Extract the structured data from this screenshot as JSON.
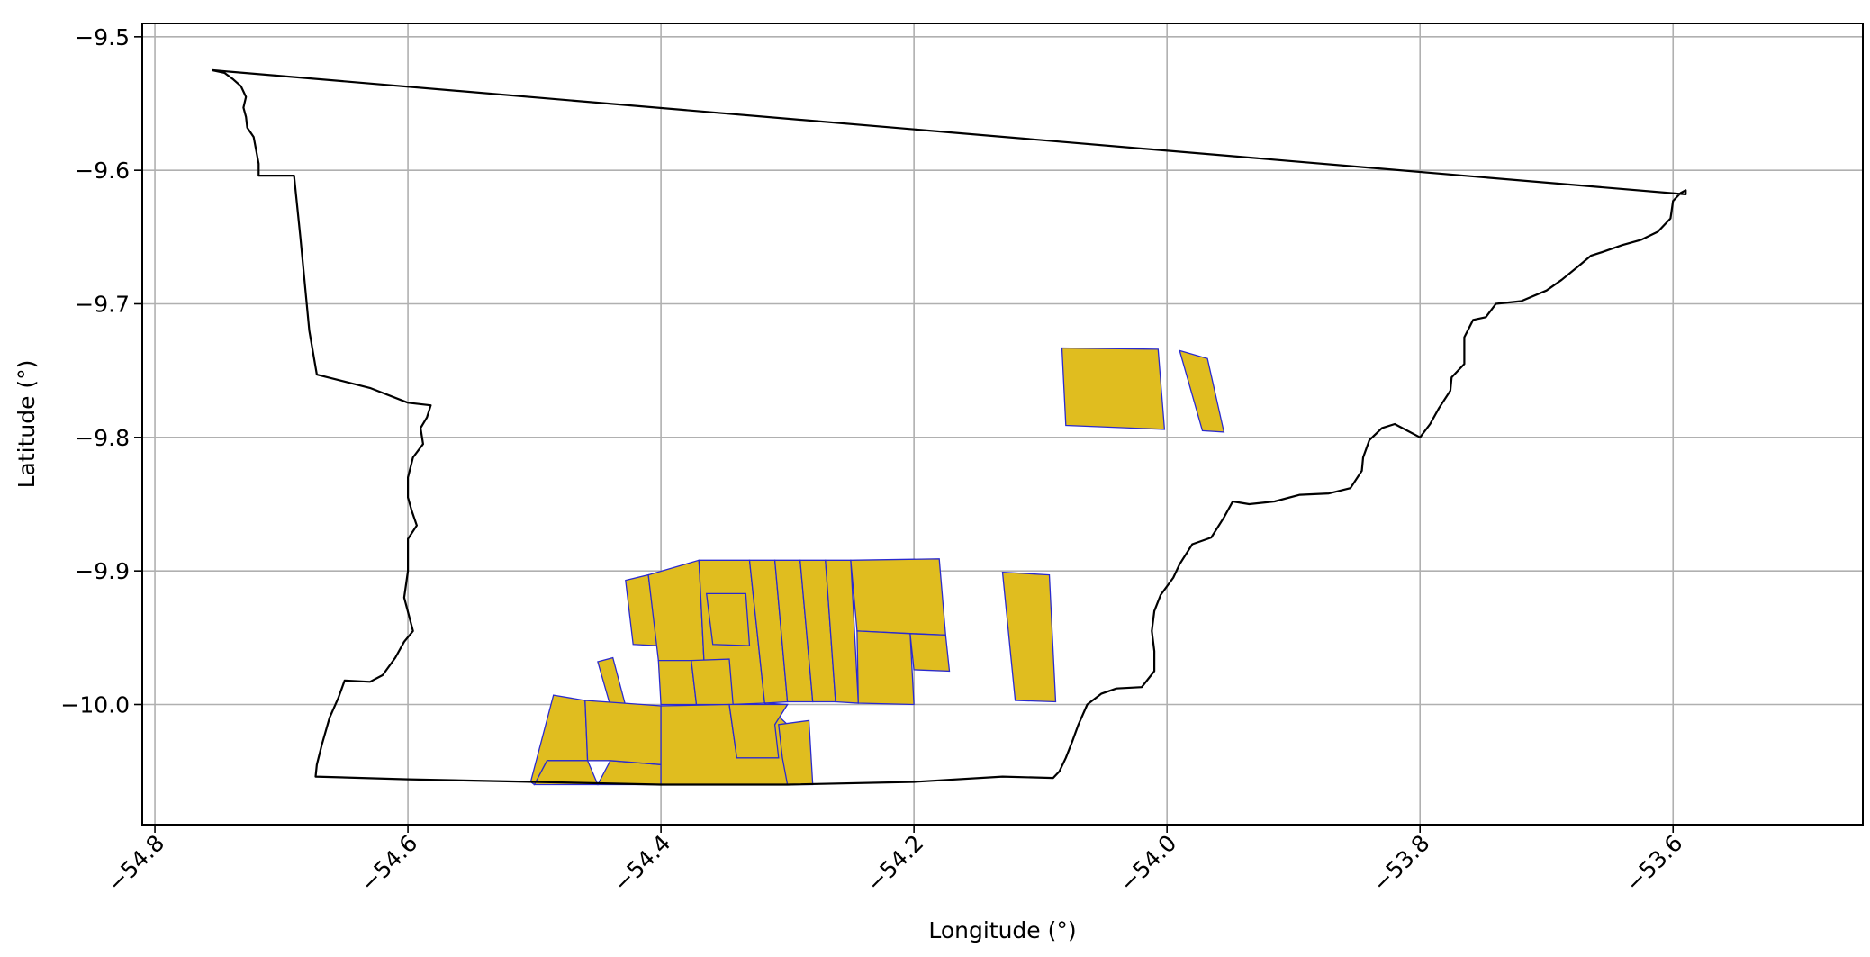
{
  "chart_data": {
    "type": "map",
    "xlabel": "Longitude (°)",
    "ylabel": "Latitude (°)",
    "xlim": [
      -54.81,
      -53.45
    ],
    "ylim": [
      -10.09,
      -9.49
    ],
    "x_ticks": [
      {
        "value": -54.8,
        "label": "−54.8"
      },
      {
        "value": -54.6,
        "label": "−54.6"
      },
      {
        "value": -54.4,
        "label": "−54.4"
      },
      {
        "value": -54.2,
        "label": "−54.2"
      },
      {
        "value": -54.0,
        "label": "−54.0"
      },
      {
        "value": -53.8,
        "label": "−53.8"
      },
      {
        "value": -53.6,
        "label": "−53.6"
      }
    ],
    "y_ticks": [
      {
        "value": -9.5,
        "label": "−9.5"
      },
      {
        "value": -9.6,
        "label": "−9.6"
      },
      {
        "value": -9.7,
        "label": "−9.7"
      },
      {
        "value": -9.8,
        "label": "−9.8"
      },
      {
        "value": -9.9,
        "label": "−9.9"
      },
      {
        "value": -10.0,
        "label": "−10.0"
      }
    ],
    "grid": true,
    "colors": {
      "boundary": "#000000",
      "parcel_fill": "#e0bd1f",
      "parcel_edge": "#2a2ad0",
      "grid": "#b0b0b0"
    },
    "boundary": [
      [
        -54.755,
        -9.525
      ],
      [
        -54.745,
        -9.527
      ],
      [
        -54.738,
        -9.532
      ],
      [
        -54.732,
        -9.537
      ],
      [
        -54.728,
        -9.545
      ],
      [
        -54.73,
        -9.553
      ],
      [
        -54.728,
        -9.56
      ],
      [
        -54.727,
        -9.568
      ],
      [
        -54.722,
        -9.575
      ],
      [
        -54.72,
        -9.585
      ],
      [
        -54.718,
        -9.595
      ],
      [
        -54.718,
        -9.604
      ],
      [
        -54.69,
        -9.604
      ],
      [
        -54.685,
        -9.65
      ],
      [
        -54.678,
        -9.72
      ],
      [
        -54.672,
        -9.753
      ],
      [
        -54.63,
        -9.763
      ],
      [
        -54.6,
        -9.774
      ],
      [
        -54.582,
        -9.776
      ],
      [
        -54.585,
        -9.785
      ],
      [
        -54.59,
        -9.793
      ],
      [
        -54.588,
        -9.805
      ],
      [
        -54.596,
        -9.815
      ],
      [
        -54.6,
        -9.83
      ],
      [
        -54.6,
        -9.845
      ],
      [
        -54.597,
        -9.855
      ],
      [
        -54.593,
        -9.866
      ],
      [
        -54.6,
        -9.876
      ],
      [
        -54.6,
        -9.9
      ],
      [
        -54.603,
        -9.92
      ],
      [
        -54.596,
        -9.945
      ],
      [
        -54.603,
        -9.953
      ],
      [
        -54.61,
        -9.965
      ],
      [
        -54.62,
        -9.978
      ],
      [
        -54.63,
        -9.983
      ],
      [
        -54.65,
        -9.982
      ],
      [
        -54.655,
        -9.995
      ],
      [
        -54.662,
        -10.01
      ],
      [
        -54.668,
        -10.03
      ],
      [
        -54.672,
        -10.045
      ],
      [
        -54.673,
        -10.054
      ],
      [
        -54.6,
        -10.056
      ],
      [
        -54.5,
        -10.058
      ],
      [
        -54.4,
        -10.06
      ],
      [
        -54.3,
        -10.06
      ],
      [
        -54.2,
        -10.058
      ],
      [
        -54.13,
        -10.054
      ],
      [
        -54.09,
        -10.055
      ],
      [
        -54.085,
        -10.05
      ],
      [
        -54.08,
        -10.04
      ],
      [
        -54.075,
        -10.028
      ],
      [
        -54.07,
        -10.015
      ],
      [
        -54.063,
        -10.0
      ],
      [
        -54.052,
        -9.992
      ],
      [
        -54.04,
        -9.988
      ],
      [
        -54.02,
        -9.987
      ],
      [
        -54.01,
        -9.975
      ],
      [
        -54.01,
        -9.96
      ],
      [
        -54.012,
        -9.945
      ],
      [
        -54.01,
        -9.93
      ],
      [
        -54.005,
        -9.918
      ],
      [
        -53.995,
        -9.905
      ],
      [
        -53.99,
        -9.895
      ],
      [
        -53.98,
        -9.88
      ],
      [
        -53.965,
        -9.875
      ],
      [
        -53.955,
        -9.86
      ],
      [
        -53.948,
        -9.848
      ],
      [
        -53.935,
        -9.85
      ],
      [
        -53.915,
        -9.848
      ],
      [
        -53.895,
        -9.843
      ],
      [
        -53.872,
        -9.842
      ],
      [
        -53.855,
        -9.838
      ],
      [
        -53.846,
        -9.825
      ],
      [
        -53.845,
        -9.815
      ],
      [
        -53.84,
        -9.802
      ],
      [
        -53.83,
        -9.793
      ],
      [
        -53.82,
        -9.79
      ],
      [
        -53.81,
        -9.795
      ],
      [
        -53.8,
        -9.8
      ],
      [
        -53.792,
        -9.79
      ],
      [
        -53.785,
        -9.778
      ],
      [
        -53.776,
        -9.765
      ],
      [
        -53.775,
        -9.755
      ],
      [
        -53.765,
        -9.745
      ],
      [
        -53.765,
        -9.725
      ],
      [
        -53.758,
        -9.712
      ],
      [
        -53.748,
        -9.71
      ],
      [
        -53.74,
        -9.7
      ],
      [
        -53.72,
        -9.698
      ],
      [
        -53.7,
        -9.69
      ],
      [
        -53.688,
        -9.682
      ],
      [
        -53.675,
        -9.672
      ],
      [
        -53.665,
        -9.664
      ],
      [
        -53.655,
        -9.661
      ],
      [
        -53.64,
        -9.656
      ],
      [
        -53.625,
        -9.652
      ],
      [
        -53.612,
        -9.646
      ],
      [
        -53.602,
        -9.636
      ],
      [
        -53.6,
        -9.623
      ],
      [
        -53.594,
        -9.617
      ],
      [
        -53.59,
        -9.615
      ],
      [
        -53.59,
        -9.618
      ],
      [
        -54.755,
        -9.525
      ]
    ],
    "parcels": [
      [
        [
          -54.083,
          -9.733
        ],
        [
          -54.007,
          -9.734
        ],
        [
          -54.002,
          -9.794
        ],
        [
          -54.08,
          -9.791
        ]
      ],
      [
        [
          -53.99,
          -9.735
        ],
        [
          -53.968,
          -9.741
        ],
        [
          -53.955,
          -9.796
        ],
        [
          -53.972,
          -9.795
        ]
      ],
      [
        [
          -54.13,
          -9.901
        ],
        [
          -54.093,
          -9.903
        ],
        [
          -54.088,
          -9.998
        ],
        [
          -54.12,
          -9.997
        ]
      ],
      [
        [
          -54.428,
          -9.907
        ],
        [
          -54.41,
          -9.903
        ],
        [
          -54.403,
          -9.956
        ],
        [
          -54.422,
          -9.955
        ]
      ],
      [
        [
          -54.41,
          -9.903
        ],
        [
          -54.37,
          -9.892
        ],
        [
          -54.366,
          -9.967
        ],
        [
          -54.402,
          -9.967
        ]
      ],
      [
        [
          -54.37,
          -9.892
        ],
        [
          -54.33,
          -9.892
        ],
        [
          -54.318,
          -9.999
        ],
        [
          -54.346,
          -10.0
        ],
        [
          -54.366,
          -9.967
        ]
      ],
      [
        [
          -54.364,
          -9.917
        ],
        [
          -54.333,
          -9.917
        ],
        [
          -54.33,
          -9.956
        ],
        [
          -54.359,
          -9.955
        ]
      ],
      [
        [
          -54.33,
          -9.892
        ],
        [
          -54.31,
          -9.892
        ],
        [
          -54.3,
          -9.998
        ],
        [
          -54.318,
          -9.999
        ]
      ],
      [
        [
          -54.31,
          -9.892
        ],
        [
          -54.29,
          -9.892
        ],
        [
          -54.28,
          -9.998
        ],
        [
          -54.3,
          -9.998
        ]
      ],
      [
        [
          -54.29,
          -9.892
        ],
        [
          -54.27,
          -9.892
        ],
        [
          -54.262,
          -9.998
        ],
        [
          -54.28,
          -9.998
        ]
      ],
      [
        [
          -54.27,
          -9.892
        ],
        [
          -54.25,
          -9.892
        ],
        [
          -54.244,
          -9.999
        ],
        [
          -54.262,
          -9.998
        ]
      ],
      [
        [
          -54.25,
          -9.892
        ],
        [
          -54.18,
          -9.891
        ],
        [
          -54.175,
          -9.948
        ],
        [
          -54.245,
          -9.945
        ]
      ],
      [
        [
          -54.245,
          -9.945
        ],
        [
          -54.203,
          -9.947
        ],
        [
          -54.2,
          -10.0
        ],
        [
          -54.244,
          -9.999
        ]
      ],
      [
        [
          -54.203,
          -9.947
        ],
        [
          -54.175,
          -9.948
        ],
        [
          -54.172,
          -9.975
        ],
        [
          -54.2,
          -9.974
        ]
      ],
      [
        [
          -54.402,
          -9.967
        ],
        [
          -54.376,
          -9.967
        ],
        [
          -54.372,
          -10.0
        ],
        [
          -54.4,
          -10.0
        ]
      ],
      [
        [
          -54.376,
          -9.967
        ],
        [
          -54.346,
          -9.966
        ],
        [
          -54.343,
          -10.0
        ],
        [
          -54.372,
          -10.0
        ]
      ],
      [
        [
          -54.45,
          -9.968
        ],
        [
          -54.438,
          -9.965
        ],
        [
          -54.428,
          -10.001
        ],
        [
          -54.44,
          -10.001
        ]
      ],
      [
        [
          -54.485,
          -9.993
        ],
        [
          -54.46,
          -9.997
        ],
        [
          -54.458,
          -10.042
        ],
        [
          -54.49,
          -10.042
        ],
        [
          -54.5,
          -10.06
        ],
        [
          -54.503,
          -10.058
        ]
      ],
      [
        [
          -54.458,
          -10.042
        ],
        [
          -54.49,
          -10.042
        ],
        [
          -54.5,
          -10.06
        ],
        [
          -54.45,
          -10.06
        ]
      ],
      [
        [
          -54.45,
          -10.06
        ],
        [
          -54.44,
          -10.042
        ],
        [
          -54.4,
          -10.045
        ],
        [
          -54.4,
          -10.06
        ]
      ],
      [
        [
          -54.46,
          -9.997
        ],
        [
          -54.4,
          -10.001
        ],
        [
          -54.4,
          -10.045
        ],
        [
          -54.44,
          -10.042
        ],
        [
          -54.458,
          -10.042
        ]
      ],
      [
        [
          -54.4,
          -10.001
        ],
        [
          -54.346,
          -10.0
        ],
        [
          -54.34,
          -10.04
        ],
        [
          -54.33,
          -10.04
        ],
        [
          -54.31,
          -10.015
        ],
        [
          -54.3,
          -10.0
        ],
        [
          -54.318,
          -9.999
        ],
        [
          -54.3,
          -10.015
        ],
        [
          -54.3,
          -10.06
        ],
        [
          -54.4,
          -10.06
        ]
      ],
      [
        [
          -54.346,
          -10.0
        ],
        [
          -54.3,
          -10.0
        ],
        [
          -54.31,
          -10.015
        ],
        [
          -54.307,
          -10.04
        ],
        [
          -54.34,
          -10.04
        ]
      ],
      [
        [
          -54.307,
          -10.015
        ],
        [
          -54.283,
          -10.012
        ],
        [
          -54.28,
          -10.06
        ],
        [
          -54.3,
          -10.06
        ],
        [
          -54.304,
          -10.04
        ]
      ]
    ]
  }
}
